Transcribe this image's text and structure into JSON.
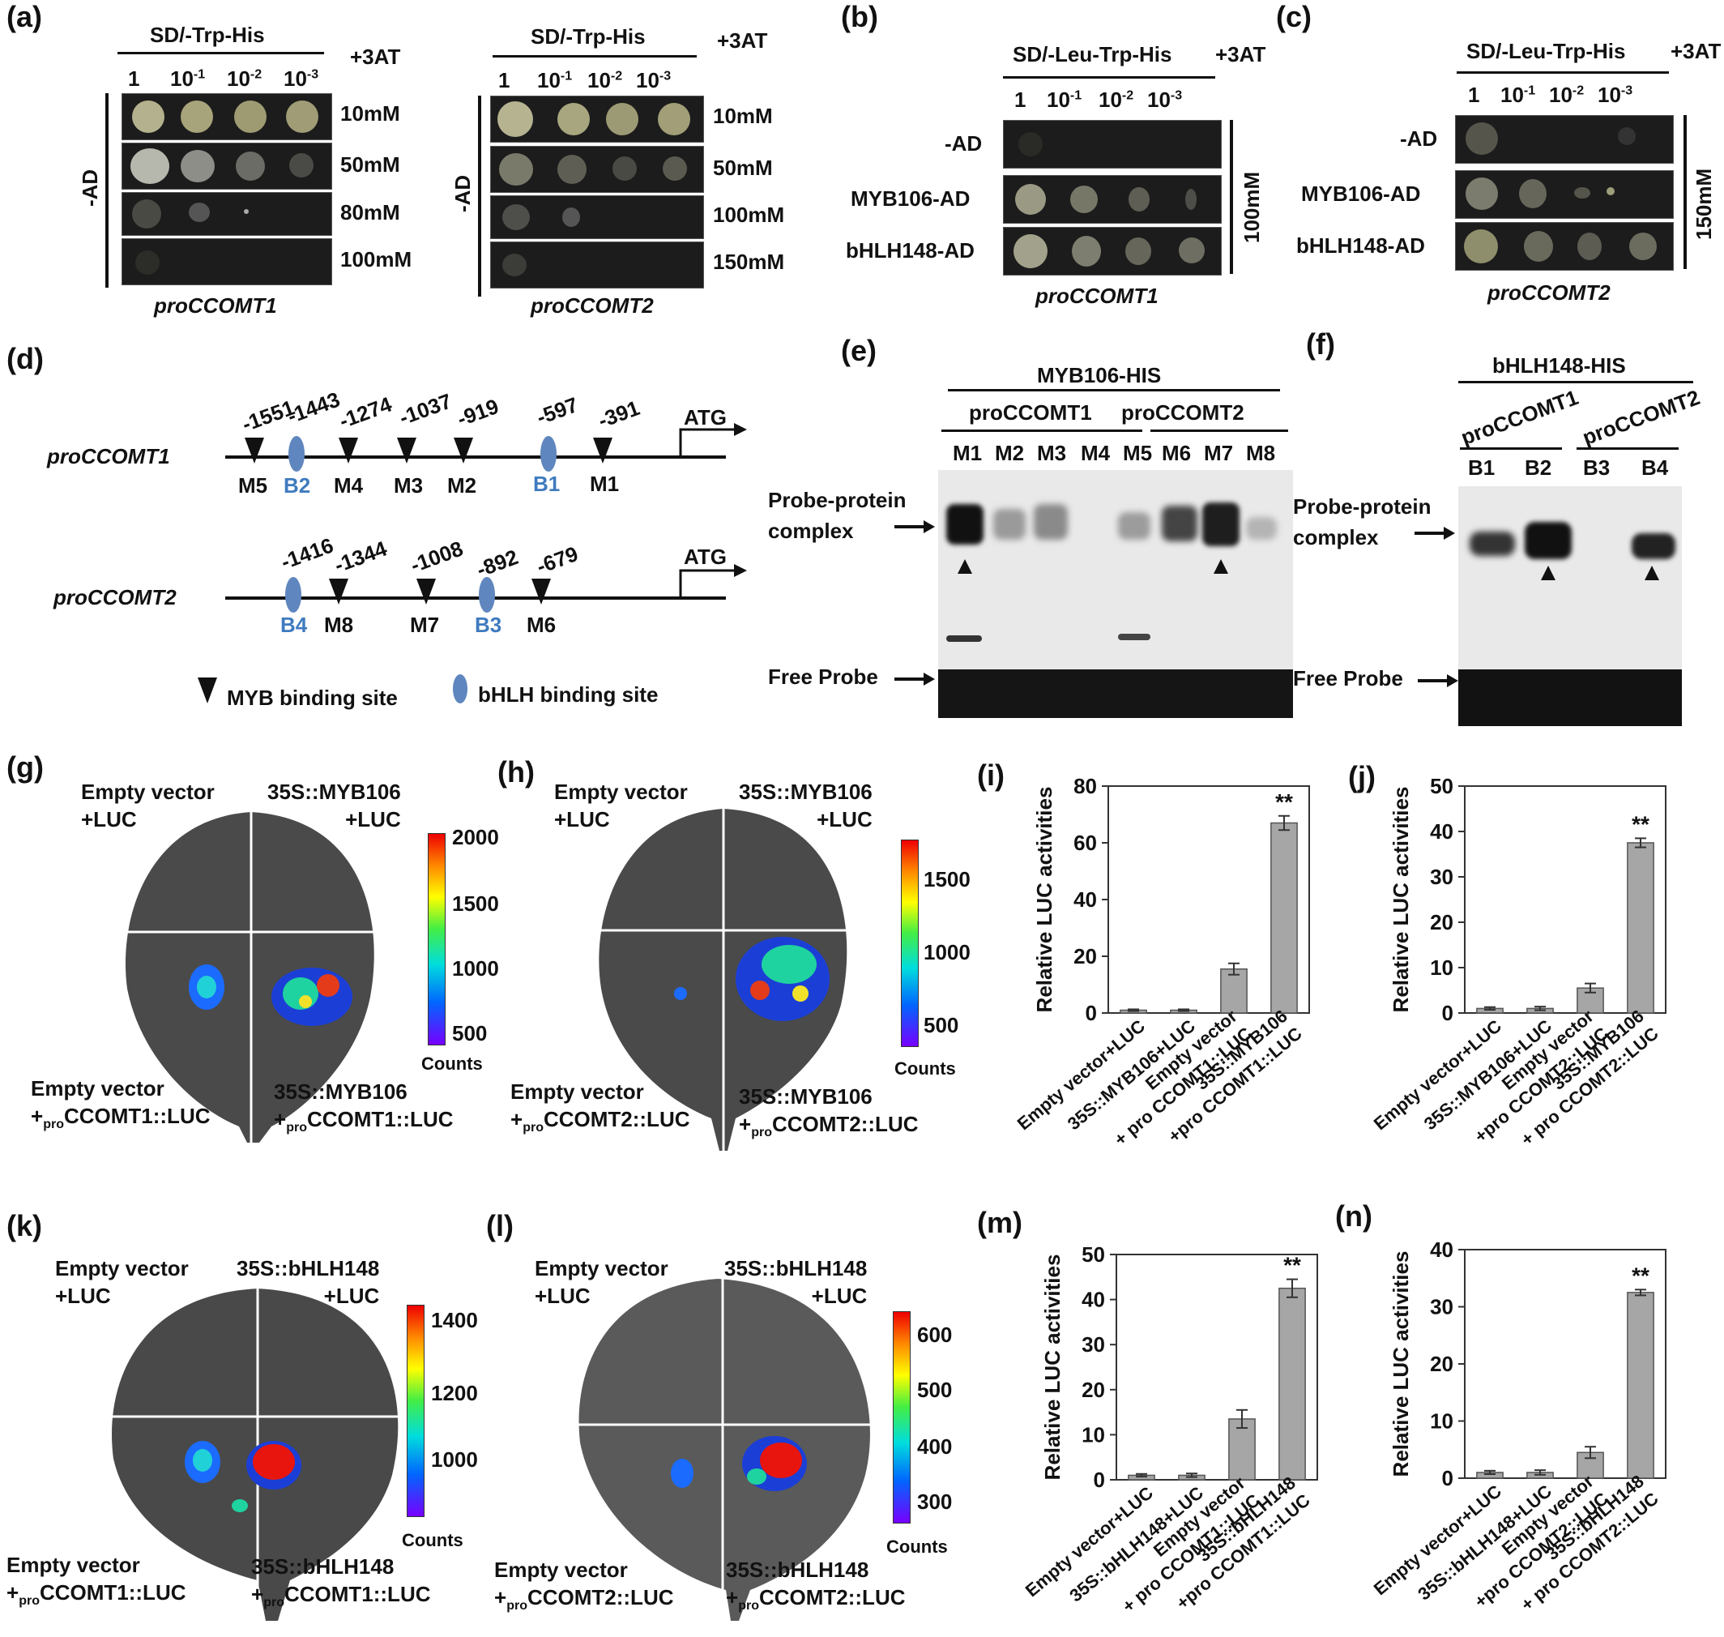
{
  "panels": {
    "a": {
      "label": "(a)",
      "medium": "SD/-Trp-His",
      "additive": "+3AT",
      "dilutions": [
        "1",
        "10",
        "10",
        "10"
      ],
      "dilution_exps": [
        "",
        "-1",
        "-2",
        "-3"
      ],
      "side_label": "-AD",
      "left": {
        "rows": [
          "10mM",
          "50mM",
          "80mM",
          "100mM"
        ],
        "caption": "proCCOMT1"
      },
      "right": {
        "rows": [
          "10mM",
          "50mM",
          "100mM",
          "150mM"
        ],
        "caption": "proCCOMT2"
      }
    },
    "b": {
      "label": "(b)",
      "medium": "SD/-Leu-Trp-His",
      "additive": "+3AT",
      "rows": [
        "-AD",
        "MYB106-AD",
        "bHLH148-AD"
      ],
      "concentration": "100mM",
      "caption": "proCCOMT1"
    },
    "c": {
      "label": "(c)",
      "medium": "SD/-Leu-Trp-His",
      "additive": "+3AT",
      "rows": [
        "-AD",
        "MYB106-AD",
        "bHLH148-AD"
      ],
      "concentration": "150mM",
      "caption": "proCCOMT2"
    },
    "d": {
      "label": "(d)",
      "promoter1": {
        "name": "proCCOMT1",
        "positions": [
          "-1551",
          "-1443",
          "-1274",
          "-1037",
          "-919",
          "-597",
          "-391"
        ],
        "sites": [
          "M5",
          "B2",
          "M4",
          "M3",
          "M2",
          "B1",
          "M1"
        ],
        "start": "ATG"
      },
      "promoter2": {
        "name": "proCCOMT2",
        "positions": [
          "-1416",
          "-1344",
          "-1008",
          "-892",
          "-679"
        ],
        "sites": [
          "B4",
          "M8",
          "M7",
          "B3",
          "M6"
        ],
        "start": "ATG"
      },
      "legend": {
        "myb": "MYB binding site",
        "bhlh": "bHLH binding site"
      }
    },
    "e": {
      "label": "(e)",
      "title": "MYB106-HIS",
      "group1": "proCCOMT1",
      "group2": "proCCOMT2",
      "lanes": [
        "M1",
        "M2",
        "M3",
        "M4",
        "M5",
        "M6",
        "M7",
        "M8"
      ],
      "complex_label": [
        "Probe-protein",
        "complex"
      ],
      "free_label": "Free Probe"
    },
    "f": {
      "label": "(f)",
      "title": "bHLH148-HIS",
      "group1": "proCCOMT1",
      "group2": "proCCOMT2",
      "lanes": [
        "B1",
        "B2",
        "B3",
        "B4"
      ],
      "complex_label": [
        "Probe-protein",
        "complex"
      ],
      "free_label": "Free Probe"
    },
    "g": {
      "label": "(g)",
      "tl": [
        "Empty vector",
        "+LUC"
      ],
      "tr": [
        "35S::MYB106",
        "+LUC"
      ],
      "bl": [
        "Empty vector",
        "+",
        "pro",
        "CCOMT1::LUC"
      ],
      "br": [
        "35S::MYB106",
        "+",
        "pro",
        "CCOMT1::LUC"
      ],
      "scale": [
        "2000",
        "1500",
        "1000",
        "500"
      ],
      "scale_label": "Counts"
    },
    "h": {
      "label": "(h)",
      "tl": [
        "Empty vector",
        "+LUC"
      ],
      "tr": [
        "35S::MYB106",
        "+LUC"
      ],
      "bl": [
        "Empty vector",
        "+",
        "pro",
        "CCOMT2::LUC"
      ],
      "br": [
        "35S::MYB106",
        "+",
        "pro",
        "CCOMT2::LUC"
      ],
      "scale": [
        "1500",
        "1000",
        "500"
      ],
      "scale_label": "Counts"
    },
    "k": {
      "label": "(k)",
      "tl": [
        "Empty vector",
        "+LUC"
      ],
      "tr": [
        "35S::bHLH148",
        "+LUC"
      ],
      "bl": [
        "Empty vector",
        "+",
        "pro",
        "CCOMT1::LUC"
      ],
      "br": [
        "35S::bHLH148",
        "+",
        "pro",
        "CCOMT1::LUC"
      ],
      "scale": [
        "1400",
        "1200",
        "1000"
      ],
      "scale_label": "Counts"
    },
    "l": {
      "label": "(l)",
      "tl": [
        "Empty vector",
        "+LUC"
      ],
      "tr": [
        "35S::bHLH148",
        "+LUC"
      ],
      "bl": [
        "Empty vector",
        "+",
        "pro",
        "CCOMT2::LUC"
      ],
      "br": [
        "35S::bHLH148",
        "+",
        "pro",
        "CCOMT2::LUC"
      ],
      "scale": [
        "600",
        "500",
        "400",
        "300"
      ],
      "scale_label": "Counts"
    }
  },
  "chart_data": [
    {
      "id": "i",
      "label": "(i)",
      "type": "bar",
      "ylabel": "Relative LUC activities",
      "ylim": [
        0,
        80
      ],
      "yticks": [
        0,
        20,
        40,
        60,
        80
      ],
      "categories": [
        "Empty vector+LUC",
        "35S::MYB106+LUC",
        "Empty vector +proCCOMT1::LUC",
        "35S::MYB106 +proCCOMT1::LUC"
      ],
      "xtick_lines": [
        [
          "Empty vector+LUC"
        ],
        [
          "35S::MYB106+LUC"
        ],
        [
          "Empty vector",
          "+ pro CCOMT1::LUC"
        ],
        [
          "35S::MYB106",
          "+pro CCOMT1::LUC"
        ]
      ],
      "values": [
        1,
        1,
        15.5,
        67
      ],
      "errors": [
        0.3,
        0.3,
        2,
        2.5
      ],
      "annotations": [
        {
          "index": 3,
          "text": "**"
        }
      ]
    },
    {
      "id": "j",
      "label": "(j)",
      "type": "bar",
      "ylabel": "Relative LUC activities",
      "ylim": [
        0,
        50
      ],
      "yticks": [
        0,
        10,
        20,
        30,
        40,
        50
      ],
      "categories": [
        "Empty vector+LUC",
        "35S::MYB106+LUC",
        "Empty vector +proCCOMT2::LUC",
        "35S::MYB106 +proCCOMT2::LUC"
      ],
      "xtick_lines": [
        [
          "Empty vector+LUC"
        ],
        [
          "35S::MYB106+LUC"
        ],
        [
          "Empty vector",
          "+pro CCOMT2::LUC"
        ],
        [
          "35S::MYB106",
          "+ pro CCOMT2::LUC"
        ]
      ],
      "values": [
        1,
        1,
        5.5,
        37.5
      ],
      "errors": [
        0.3,
        0.4,
        1,
        1
      ],
      "annotations": [
        {
          "index": 3,
          "text": "**"
        }
      ]
    },
    {
      "id": "m",
      "label": "(m)",
      "type": "bar",
      "ylabel": "Relative LUC activities",
      "ylim": [
        0,
        50
      ],
      "yticks": [
        0,
        10,
        20,
        30,
        40,
        50
      ],
      "categories": [
        "Empty vector+LUC",
        "35S::bHLH148+LUC",
        "Empty vector +proCCOMT1::LUC",
        "35S::bHLH148 +proCCOMT1::LUC"
      ],
      "xtick_lines": [
        [
          "Empty vector+LUC"
        ],
        [
          "35S::bHLH148+LUC"
        ],
        [
          "Empty vector",
          "+ pro CCOMT1::LUC"
        ],
        [
          "35S::bHLH148",
          "+pro CCOMT1::LUC"
        ]
      ],
      "values": [
        1,
        1,
        13.5,
        42.5
      ],
      "errors": [
        0.3,
        0.4,
        2,
        2
      ],
      "annotations": [
        {
          "index": 3,
          "text": "**"
        }
      ]
    },
    {
      "id": "n",
      "label": "(n)",
      "type": "bar",
      "ylabel": "Relative LUC activities",
      "ylim": [
        0,
        40
      ],
      "yticks": [
        0,
        10,
        20,
        30,
        40
      ],
      "categories": [
        "Empty vector+LUC",
        "35S::bHLH148+LUC",
        "Empty vector +proCCOMT2::LUC",
        "35S::bHLH148 +proCCOMT2::LUC"
      ],
      "xtick_lines": [
        [
          "Empty vector+LUC"
        ],
        [
          "35S::bHLH148+LUC"
        ],
        [
          "Empty vector",
          "+pro CCOMT2::LUC"
        ],
        [
          "35S::bHLH148",
          "+ pro CCOMT2::LUC"
        ]
      ],
      "values": [
        1,
        1,
        4.5,
        32.5
      ],
      "errors": [
        0.3,
        0.4,
        1,
        0.5
      ],
      "annotations": [
        {
          "index": 3,
          "text": "**"
        }
      ]
    }
  ]
}
